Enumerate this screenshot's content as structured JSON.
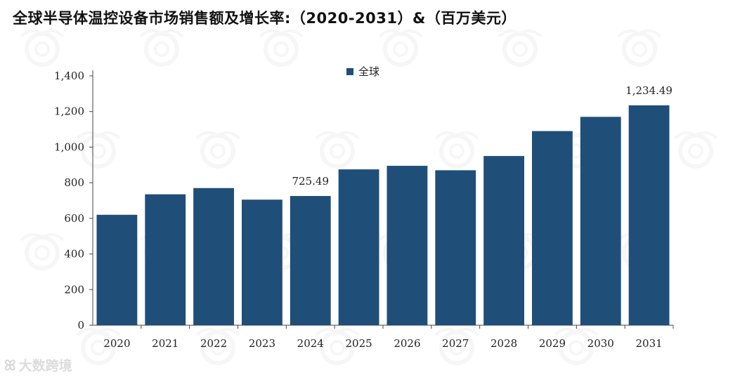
{
  "title": "全球半导体温控设备市场销售额及增长率:（2020-2031）&（百万美元）",
  "brand_watermark": "大数跨境",
  "colors": {
    "bar": "#1f4e79",
    "axis": "#444444"
  },
  "chart_data": {
    "type": "bar",
    "title": "全球半导体温控设备市场销售额及增长率:（2020-2031）&（百万美元）",
    "categories": [
      "2020",
      "2021",
      "2022",
      "2023",
      "2024",
      "2025",
      "2026",
      "2027",
      "2028",
      "2029",
      "2030",
      "2031"
    ],
    "series": [
      {
        "name": "全球",
        "values": [
          620,
          735,
          770,
          705,
          725.49,
          875,
          895,
          870,
          950,
          1090,
          1170,
          1234.49
        ]
      }
    ],
    "data_labels": [
      {
        "category": "2024",
        "text": "725.49"
      },
      {
        "category": "2031",
        "text": "1,234.49"
      }
    ],
    "ylim": [
      0,
      1400
    ],
    "yticks": [
      0,
      200,
      400,
      600,
      800,
      1000,
      1200,
      1400
    ],
    "ytick_labels": [
      "0",
      "200",
      "400",
      "600",
      "800",
      "1,000",
      "1,200",
      "1,400"
    ],
    "xlabel": "",
    "ylabel": "",
    "legend_position": "top-center",
    "grid": false
  }
}
